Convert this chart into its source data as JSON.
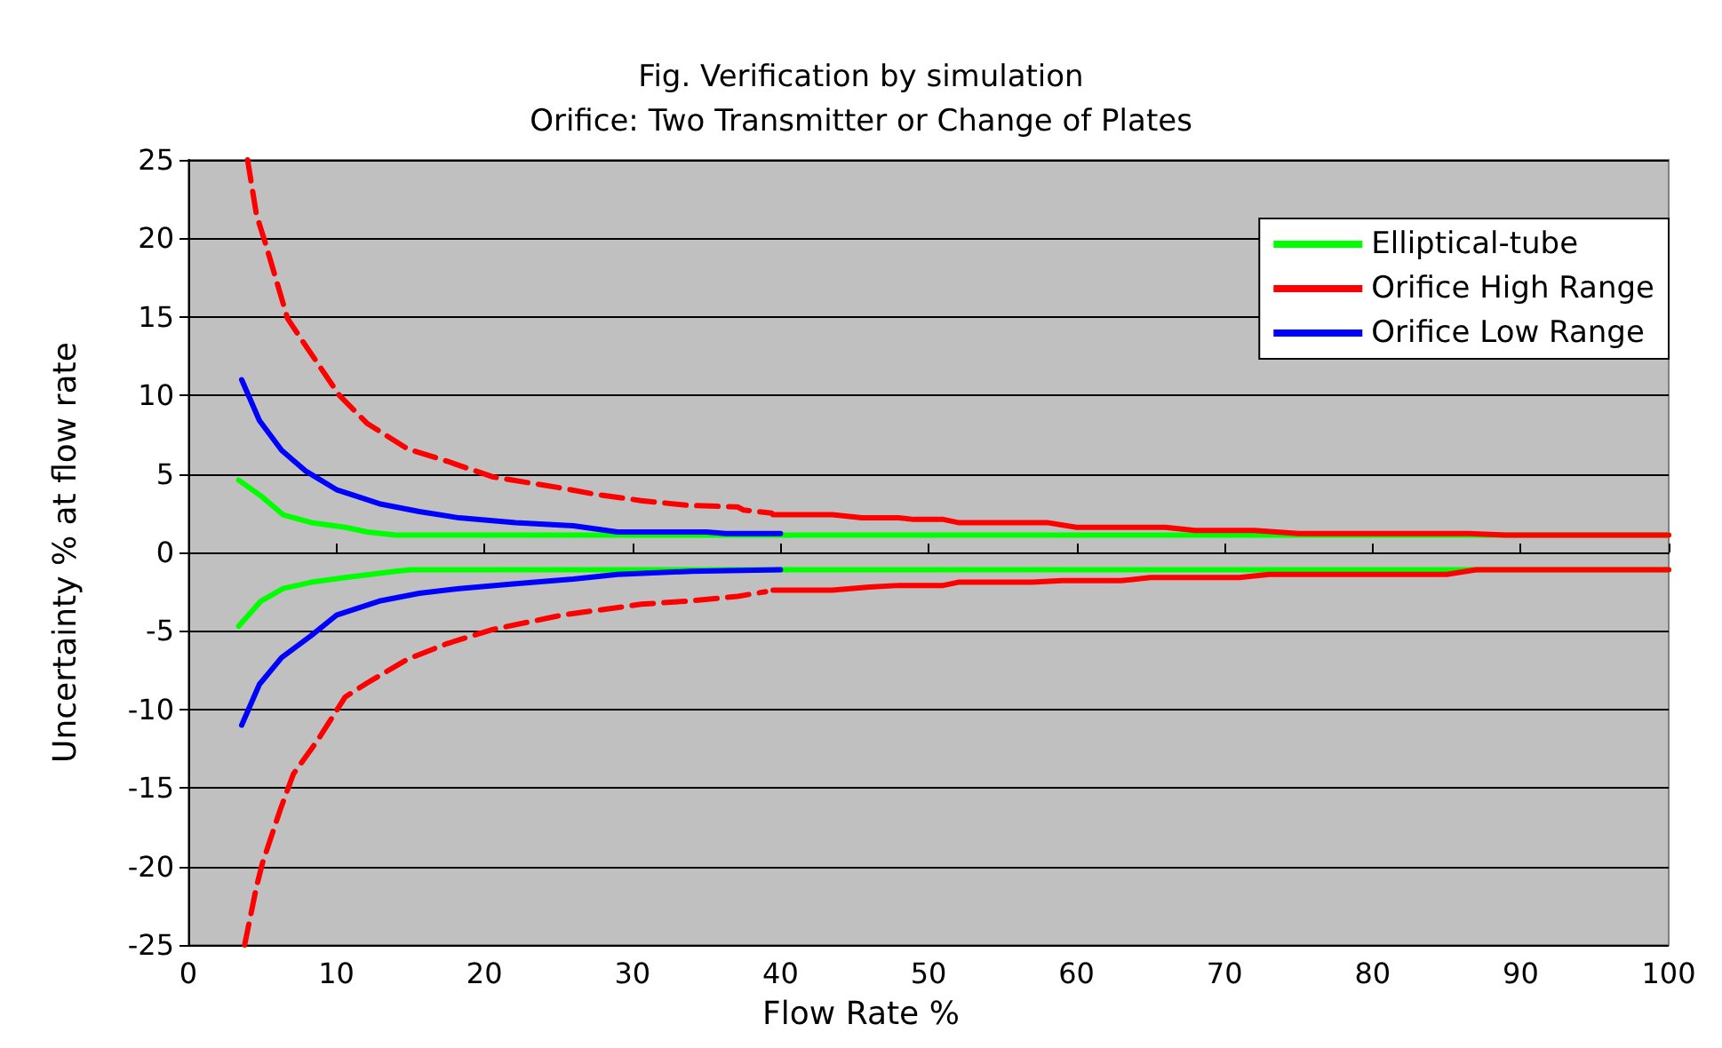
{
  "chart_data": {
    "type": "line",
    "title": "Fig. Verification by simulation",
    "subtitle": "Orifice: Two Transmitter or Change of Plates",
    "xlabel": "Flow Rate %",
    "ylabel": "Uncertainty % at flow rate",
    "xlim": [
      0,
      100
    ],
    "xticks": [
      0,
      10,
      20,
      30,
      40,
      50,
      60,
      70,
      80,
      90,
      100
    ],
    "ylim": [
      -25,
      25
    ],
    "yticks": [
      -25,
      -20,
      -15,
      -10,
      -5,
      0,
      5,
      10,
      15,
      20,
      25
    ],
    "grid": "y",
    "legend": "top right",
    "marker": "none",
    "series": [
      {
        "name": "Elliptical-tube",
        "color": "#00ff00",
        "line_style": "solid",
        "x": [
          3.4,
          4.9,
          6.4,
          8.3,
          10.6,
          12.1,
          14,
          20,
          40,
          60,
          80,
          100
        ],
        "values": [
          4.6,
          3.6,
          2.4,
          1.9,
          1.6,
          1.3,
          1.1,
          1.1,
          1.1,
          1.1,
          1.1,
          1.1
        ]
      },
      {
        "color": "#00ff00",
        "line_style": "solid",
        "x": [
          3.4,
          4.9,
          6.4,
          8.3,
          10.6,
          14,
          15,
          20,
          40,
          60,
          80,
          100
        ],
        "values": [
          -4.7,
          -3.1,
          -2.3,
          -1.9,
          -1.6,
          -1.2,
          -1.1,
          -1.1,
          -1.1,
          -1.1,
          -1.1,
          -1.1
        ]
      },
      {
        "color": "#ff0000",
        "line_style": "dashed",
        "x": [
          4,
          4.6,
          5.2,
          6.7,
          7.9,
          10.2,
          12.1,
          14.8,
          17.5,
          20.6,
          25.2,
          27.5,
          30.6,
          33.7,
          37.1,
          37.5,
          39.4
        ],
        "values": [
          25,
          21.5,
          19.7,
          14.9,
          13.2,
          10,
          8.2,
          6.6,
          5.8,
          4.8,
          4.1,
          3.7,
          3.3,
          3,
          2.9,
          2.7,
          2.5
        ]
      },
      {
        "color": "#ff0000",
        "line_style": "dashed",
        "x": [
          3.8,
          4.6,
          5,
          6.2,
          7.1,
          8.7,
          10.6,
          12.1,
          14.8,
          17.5,
          20.6,
          25.2,
          27.5,
          30.6,
          33.7,
          37.1,
          39
        ],
        "values": [
          -25,
          -21.3,
          -19.8,
          -16.4,
          -14.1,
          -12,
          -9.2,
          -8.3,
          -6.8,
          -5.8,
          -4.9,
          -4,
          -3.7,
          -3.3,
          -3.1,
          -2.8,
          -2.5
        ]
      },
      {
        "name": "Orifice High Range",
        "color": "#ff0000",
        "line_style": "solid",
        "x": [
          39.5,
          43.5,
          45.5,
          48,
          49,
          51,
          52,
          58,
          60,
          66,
          68,
          72,
          75,
          86.5,
          89,
          100
        ],
        "values": [
          2.4,
          2.4,
          2.2,
          2.2,
          2.1,
          2.1,
          1.9,
          1.9,
          1.6,
          1.6,
          1.4,
          1.4,
          1.2,
          1.2,
          1.1,
          1.1
        ]
      },
      {
        "color": "#ff0000",
        "line_style": "solid",
        "x": [
          39.5,
          43.5,
          46,
          48,
          51,
          52,
          57,
          59,
          63,
          65,
          71,
          73,
          85,
          87,
          100
        ],
        "values": [
          -2.4,
          -2.4,
          -2.2,
          -2.1,
          -2.1,
          -1.9,
          -1.9,
          -1.8,
          -1.8,
          -1.6,
          -1.6,
          -1.4,
          -1.4,
          -1.1,
          -1.1
        ]
      },
      {
        "name": "Orifice Low Range",
        "color": "#0000ff",
        "line_style": "solid",
        "x": [
          3.6,
          4.8,
          6.3,
          7.9,
          10,
          11.3,
          12.9,
          15.6,
          18.3,
          22.1,
          26,
          29,
          35,
          36.3,
          40
        ],
        "values": [
          11,
          8.4,
          6.5,
          5.2,
          4,
          3.6,
          3.1,
          2.6,
          2.2,
          1.9,
          1.7,
          1.3,
          1.3,
          1.2,
          1.2
        ]
      },
      {
        "color": "#0000ff",
        "line_style": "solid",
        "x": [
          3.6,
          4.8,
          6.3,
          8.3,
          10,
          12.9,
          15.6,
          18.3,
          22.1,
          26,
          29,
          34,
          40
        ],
        "values": [
          -11,
          -8.4,
          -6.7,
          -5.3,
          -4,
          -3.1,
          -2.6,
          -2.3,
          -2,
          -1.7,
          -1.4,
          -1.2,
          -1.1
        ]
      }
    ]
  }
}
